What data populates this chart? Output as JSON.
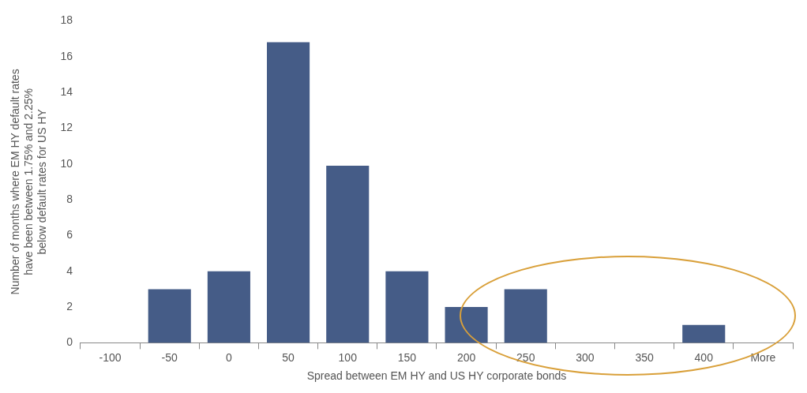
{
  "chart_data": {
    "type": "bar",
    "xlabel": "Spread between EM HY and US HY corporate bonds",
    "ylabel": "Number of months where EM HY default rates\nhave been between 1.75% and 2.25%\nbelow default rates for US HY",
    "categories": [
      "-100",
      "-50",
      "0",
      "50",
      "100",
      "150",
      "200",
      "250",
      "300",
      "350",
      "400",
      "More"
    ],
    "values": [
      0,
      3,
      4,
      16.8,
      9.9,
      4,
      2,
      3,
      0,
      0,
      1,
      0
    ],
    "color": "#455c87",
    "ylim": [
      0,
      18
    ],
    "yticks": [
      0,
      2,
      4,
      6,
      8,
      10,
      12,
      14,
      16,
      18
    ],
    "grid": false,
    "legend": false
  }
}
